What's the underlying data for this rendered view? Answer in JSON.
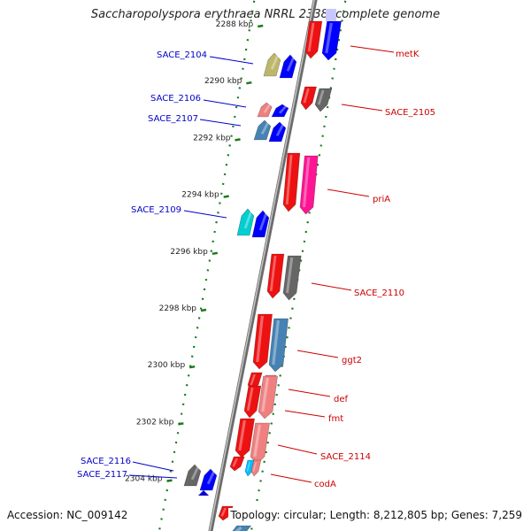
{
  "title": "Saccharopolyspora erythraea NRRL 2338, complete genome",
  "accession": "Accession: NC_009142",
  "topology": "Topology: circular; Length: 8,212,805 bp; Genes: 7,259",
  "colors": {
    "backbone": "#8a8a8a",
    "dotted_ring": "#1a7a1a",
    "label_forward": "#cc0000",
    "label_reverse": "#0000cc"
  },
  "scale_ticks": [
    {
      "label": "2288 kbp",
      "pos": 2288
    },
    {
      "label": "2290 kbp",
      "pos": 2290
    },
    {
      "label": "2292 kbp",
      "pos": 2292
    },
    {
      "label": "2294 kbp",
      "pos": 2294
    },
    {
      "label": "2296 kbp",
      "pos": 2296
    },
    {
      "label": "2298 kbp",
      "pos": 2298
    },
    {
      "label": "2300 kbp",
      "pos": 2300
    },
    {
      "label": "2302 kbp",
      "pos": 2302
    },
    {
      "label": "2304 kbp",
      "pos": 2304
    }
  ],
  "forward_genes": [
    {
      "name": "metK",
      "labeled": true
    },
    {
      "name": "SACE_2105",
      "labeled": true
    },
    {
      "name": "priA",
      "labeled": true
    },
    {
      "name": "SACE_2110",
      "labeled": true
    },
    {
      "name": "ggt2",
      "labeled": true
    },
    {
      "name": "def",
      "labeled": true
    },
    {
      "name": "fmt",
      "labeled": true
    },
    {
      "name": "SACE_2114",
      "labeled": true
    },
    {
      "name": "codA",
      "labeled": true
    }
  ],
  "reverse_genes": [
    {
      "name": "SACE_2104",
      "labeled": true
    },
    {
      "name": "SACE_2106",
      "labeled": true
    },
    {
      "name": "SACE_2107",
      "labeled": true
    },
    {
      "name": "SACE_2109",
      "labeled": true
    },
    {
      "name": "SACE_2116",
      "labeled": true
    },
    {
      "name": "SACE_2117",
      "labeled": true
    }
  ]
}
